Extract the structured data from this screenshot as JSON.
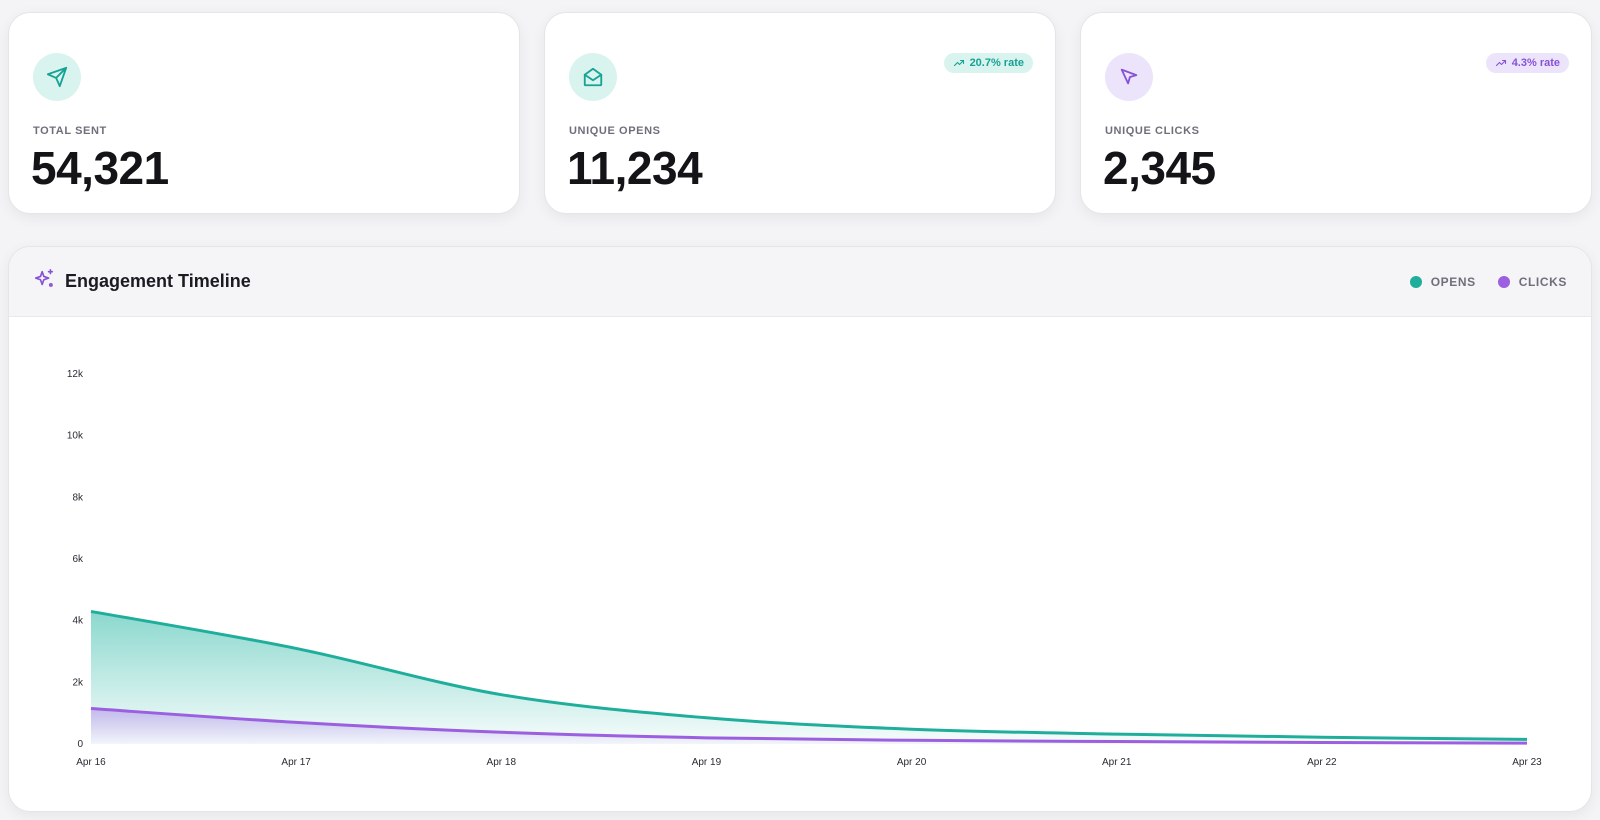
{
  "stats": [
    {
      "label": "TOTAL SENT",
      "value": "54,321",
      "icon": "send-icon",
      "color": "#17a394",
      "badge": null
    },
    {
      "label": "UNIQUE OPENS",
      "value": "11,234",
      "icon": "mail-open-icon",
      "color": "#17a394",
      "badge": "20.7% rate"
    },
    {
      "label": "UNIQUE CLICKS",
      "value": "2,345",
      "icon": "cursor-icon",
      "color": "#8753d6",
      "badge": "4.3% rate"
    }
  ],
  "chart": {
    "title": "Engagement Timeline",
    "icon": "sparkles-icon",
    "legend": [
      {
        "label": "OPENS",
        "color": "#1fae9c"
      },
      {
        "label": "CLICKS",
        "color": "#9b5fe0"
      }
    ]
  },
  "chart_data": {
    "type": "area",
    "x": [
      "Apr 16",
      "Apr 17",
      "Apr 18",
      "Apr 19",
      "Apr 20",
      "Apr 21",
      "Apr 22",
      "Apr 23"
    ],
    "series": [
      {
        "name": "OPENS",
        "color": "#1fae9c",
        "values": [
          4300,
          3100,
          1600,
          850,
          480,
          320,
          220,
          150
        ]
      },
      {
        "name": "CLICKS",
        "color": "#9b5fe0",
        "values": [
          1150,
          700,
          380,
          200,
          120,
          80,
          50,
          30
        ]
      }
    ],
    "yticks": [
      "0",
      "2k",
      "4k",
      "6k",
      "8k",
      "10k",
      "12k"
    ],
    "ylim": [
      0,
      12000
    ],
    "grid": false,
    "legend_position": "top-right"
  }
}
